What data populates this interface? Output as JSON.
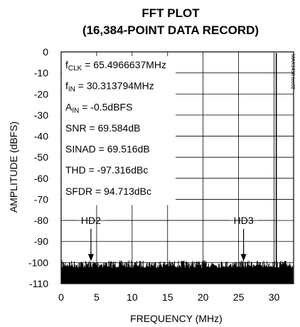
{
  "chart_data": {
    "type": "line",
    "title": "FFT PLOT",
    "subtitle": "(16,384-POINT DATA RECORD)",
    "xlabel": "FREQUENCY (MHz)",
    "ylabel": "AMPLITUDE (dBFS)",
    "xlim": [
      0,
      32.75
    ],
    "ylim": [
      -110,
      0
    ],
    "xticks": [
      0,
      5,
      10,
      15,
      20,
      25,
      30
    ],
    "yticks": [
      0,
      -10,
      -20,
      -30,
      -40,
      -50,
      -60,
      -70,
      -80,
      -90,
      -100,
      -110
    ],
    "grid": true,
    "fundamental": {
      "x": 30.31,
      "y": -0.5
    },
    "noise_floor": {
      "from": -110,
      "to": -99
    },
    "markers": [
      {
        "label": "HD2",
        "x": 4.2,
        "y": -100
      },
      {
        "label": "HD3",
        "x": 25.7,
        "y": -100
      }
    ],
    "parameters": [
      {
        "name": "f",
        "sub": "CLK",
        "value": " = 65.4966637MHz"
      },
      {
        "name": "f",
        "sub": "IN",
        "value": " = 30.313794MHz"
      },
      {
        "name": "A",
        "sub": "IN",
        "value": " = -0.5dBFS"
      },
      {
        "name": "SNR",
        "sub": "",
        "value": " = 69.584dB"
      },
      {
        "name": "SINAD",
        "sub": "",
        "value": " = 69.516dB"
      },
      {
        "name": "THD",
        "sub": "",
        "value": " = -97.316dBc"
      },
      {
        "name": "SFDR",
        "sub": "",
        "value": " = 94.713dBc"
      }
    ],
    "figure_id": "MAX1438 toc02"
  }
}
